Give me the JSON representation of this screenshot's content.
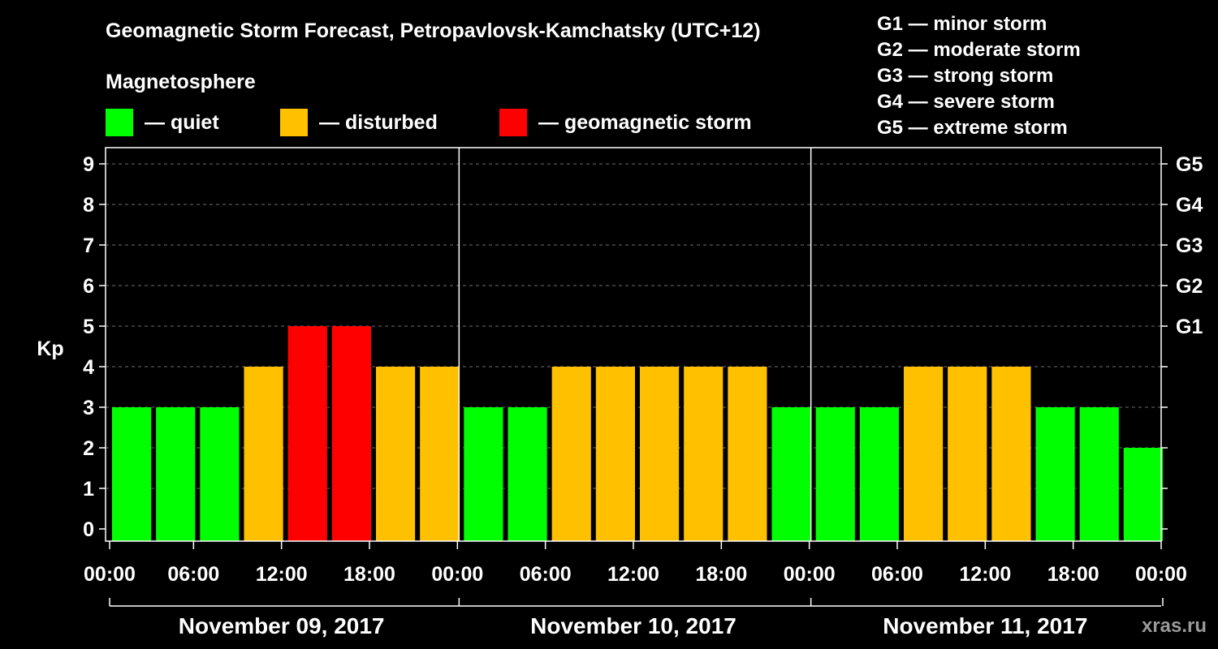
{
  "title": "Geomagnetic Storm Forecast, Petropavlovsk-Kamchatsky (UTC+12)",
  "subtitle": "Magnetosphere",
  "legend": [
    {
      "label": "— quiet",
      "color": "#00ff00"
    },
    {
      "label": "— disturbed",
      "color": "#ffc000"
    },
    {
      "label": "— geomagnetic storm",
      "color": "#ff0000"
    }
  ],
  "storm_levels": [
    "G1 — minor storm",
    "G2 — moderate storm",
    "G3 — strong storm",
    "G4 — severe storm",
    "G5 — extreme storm"
  ],
  "watermark": "xras.ru",
  "chart_data": {
    "type": "bar",
    "ylabel": "Kp",
    "ylim": [
      0,
      9
    ],
    "yticks": [
      "0",
      "1",
      "2",
      "3",
      "4",
      "5",
      "6",
      "7",
      "8",
      "9"
    ],
    "right_ticks": [
      {
        "kp": 5,
        "label": "G1"
      },
      {
        "kp": 6,
        "label": "G2"
      },
      {
        "kp": 7,
        "label": "G3"
      },
      {
        "kp": 8,
        "label": "G4"
      },
      {
        "kp": 9,
        "label": "G5"
      }
    ],
    "x_tick_labels": [
      "00:00",
      "06:00",
      "12:00",
      "18:00",
      "00:00",
      "06:00",
      "12:00",
      "18:00",
      "00:00",
      "06:00",
      "12:00",
      "18:00",
      "00:00"
    ],
    "days": [
      "November 09, 2017",
      "November 10, 2017",
      "November 11, 2017"
    ],
    "values": [
      3,
      3,
      3,
      4,
      5,
      5,
      4,
      4,
      3,
      3,
      4,
      4,
      4,
      4,
      4,
      3,
      3,
      3,
      4,
      4,
      4,
      3,
      3,
      2
    ],
    "colors": {
      "quiet": "#00ff00",
      "disturbed": "#ffc000",
      "storm": "#ff0000"
    },
    "grid": true
  }
}
